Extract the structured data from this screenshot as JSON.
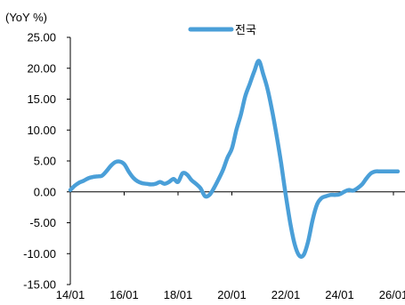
{
  "chart_data": {
    "type": "line",
    "title": "",
    "xlabel": "",
    "ylabel": "(YoY %)",
    "ylim": [
      -15,
      25
    ],
    "grid": false,
    "legend_position": "top-center",
    "y_ticks": [
      "25.00",
      "20.00",
      "15.00",
      "10.00",
      "5.00",
      "0.00",
      "-5.00",
      "-10.00",
      "-15.00"
    ],
    "x_ticks": [
      "14/01",
      "16/01",
      "18/01",
      "20/01",
      "22/01",
      "24/01",
      "26/01"
    ],
    "series": [
      {
        "name": "전국",
        "color": "#4a9fd8",
        "x": [
          "14/01",
          "14/03",
          "14/05",
          "14/07",
          "14/09",
          "14/11",
          "15/01",
          "15/03",
          "15/05",
          "15/07",
          "15/09",
          "15/11",
          "16/01",
          "16/03",
          "16/05",
          "16/07",
          "16/09",
          "16/11",
          "17/01",
          "17/03",
          "17/05",
          "17/07",
          "17/09",
          "17/11",
          "18/01",
          "18/03",
          "18/05",
          "18/07",
          "18/09",
          "18/11",
          "19/01",
          "19/03",
          "19/05",
          "19/07",
          "19/09",
          "19/11",
          "20/01",
          "20/03",
          "20/05",
          "20/07",
          "20/09",
          "20/11",
          "21/01",
          "21/03",
          "21/05",
          "21/07",
          "21/09",
          "21/11",
          "22/01",
          "22/03",
          "22/05",
          "22/07",
          "22/09",
          "22/11",
          "23/01",
          "23/03",
          "23/05",
          "23/07",
          "23/09",
          "23/11",
          "24/01",
          "24/03",
          "24/05",
          "24/07",
          "24/09",
          "24/11",
          "25/01",
          "25/03",
          "25/05",
          "25/07",
          "25/09",
          "25/11",
          "26/01",
          "26/03"
        ],
        "y": [
          0.3,
          1.0,
          1.5,
          1.8,
          2.2,
          2.4,
          2.5,
          2.6,
          3.3,
          4.2,
          4.8,
          4.9,
          4.5,
          3.3,
          2.3,
          1.7,
          1.4,
          1.3,
          1.2,
          1.3,
          1.6,
          1.3,
          1.6,
          2.1,
          1.6,
          3.0,
          2.8,
          1.9,
          1.3,
          0.6,
          -0.7,
          -0.5,
          0.6,
          2.0,
          3.5,
          5.5,
          7.0,
          10.0,
          12.5,
          15.5,
          17.5,
          19.5,
          21.2,
          19.0,
          16.5,
          13.0,
          9.0,
          4.5,
          -0.5,
          -5.0,
          -8.5,
          -10.3,
          -10.2,
          -8.0,
          -4.5,
          -2.0,
          -1.0,
          -0.7,
          -0.5,
          -0.5,
          -0.4,
          0.0,
          0.3,
          0.2,
          0.6,
          1.2,
          2.2,
          3.0,
          3.3,
          3.3,
          3.3,
          3.3,
          3.3,
          3.3
        ]
      }
    ]
  }
}
